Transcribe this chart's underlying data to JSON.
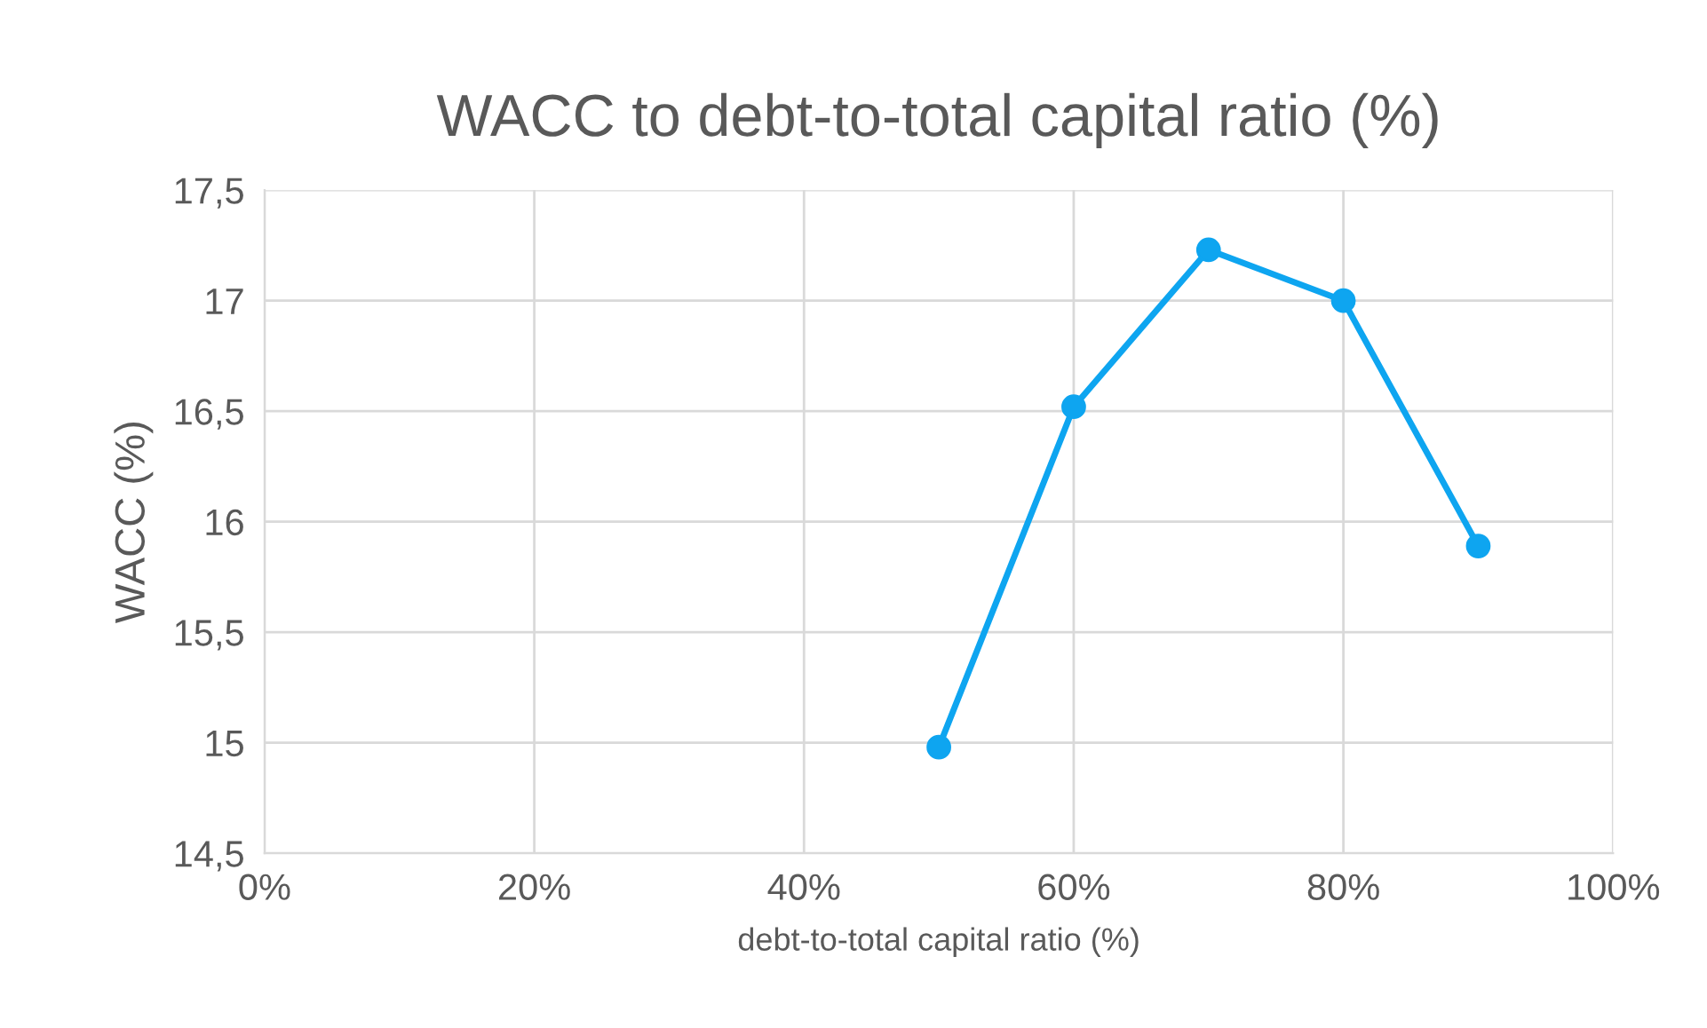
{
  "chart_data": {
    "type": "line",
    "title": "WACC to debt-to-total capital ratio (%)",
    "xlabel": "debt-to-total capital ratio (%)",
    "ylabel": "WACC (%)",
    "x": [
      50,
      60,
      70,
      80,
      90
    ],
    "series": [
      {
        "color": "#0ea5f0",
        "values": [
          14.98,
          16.52,
          17.23,
          17.0,
          15.89
        ]
      }
    ],
    "xlim": [
      0,
      100
    ],
    "xticks": [
      {
        "value": 0,
        "label": "0%"
      },
      {
        "value": 20,
        "label": "20%"
      },
      {
        "value": 40,
        "label": "40%"
      },
      {
        "value": 60,
        "label": "60%"
      },
      {
        "value": 80,
        "label": "80%"
      },
      {
        "value": 100,
        "label": "100%"
      }
    ],
    "ylim": [
      14.5,
      17.5
    ],
    "yticks": [
      {
        "value": 14.5,
        "label": "14,5"
      },
      15,
      {
        "value": 15.5,
        "label": "15,5"
      },
      16,
      {
        "value": 16.5,
        "label": "16,5"
      },
      17,
      {
        "value": 17.5,
        "label": "17,5"
      }
    ],
    "grid": true,
    "marker": "circle",
    "line_style": "solid"
  }
}
